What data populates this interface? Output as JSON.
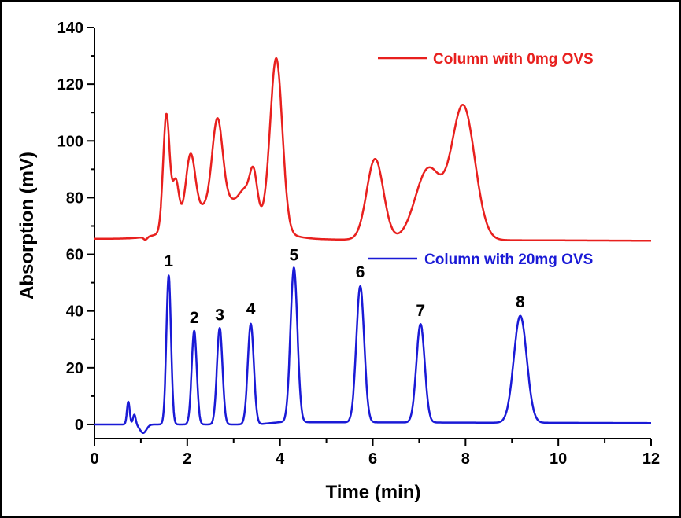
{
  "chart_data": {
    "type": "line",
    "title": "",
    "xlabel": "Time (min)",
    "ylabel": "Absorption (mV)",
    "xlim": [
      0,
      12
    ],
    "ylim": [
      -5,
      140
    ],
    "xticks": [
      0,
      2,
      4,
      6,
      8,
      10,
      12
    ],
    "yticks": [
      0,
      20,
      40,
      60,
      80,
      100,
      120,
      140
    ],
    "grid": false,
    "legend_placement": "top-right (per series)",
    "series": [
      {
        "name": "Column with 0mg OVS",
        "color": "#e8201e",
        "baseline": [
          [
            0,
            65.5
          ],
          [
            12,
            64.8
          ]
        ],
        "peaks": [
          {
            "time": 2.8,
            "height": 14,
            "sigma": 0.7
          },
          {
            "time": 1.1,
            "height": -1,
            "sigma": 0.04
          },
          {
            "time": 1.55,
            "height": 41,
            "sigma": 0.07
          },
          {
            "time": 1.75,
            "height": 16,
            "sigma": 0.07
          },
          {
            "time": 2.07,
            "height": 22,
            "sigma": 0.1
          },
          {
            "time": 2.65,
            "height": 29,
            "sigma": 0.11
          },
          {
            "time": 3.25,
            "height": 6,
            "sigma": 0.12
          },
          {
            "time": 3.43,
            "height": 14,
            "sigma": 0.08
          },
          {
            "time": 3.92,
            "height": 60,
            "sigma": 0.13
          },
          {
            "time": 6.05,
            "height": 28.5,
            "sigma": 0.18
          },
          {
            "time": 7.2,
            "height": 25,
            "sigma": 0.28
          },
          {
            "time": 7.95,
            "height": 47,
            "sigma": 0.25
          }
        ]
      },
      {
        "name": "Column with 20mg OVS",
        "color": "#1a1ad6",
        "baseline": [
          [
            0,
            0
          ],
          [
            3.5,
            0
          ],
          [
            4,
            0.8
          ],
          [
            12,
            0.5
          ]
        ],
        "peaks": [
          {
            "time": 0.73,
            "height": 8,
            "sigma": 0.03
          },
          {
            "time": 0.86,
            "height": 3.5,
            "sigma": 0.03
          },
          {
            "time": 1.05,
            "height": -3,
            "sigma": 0.07
          },
          {
            "time": 1.6,
            "height": 52.5,
            "sigma": 0.05
          },
          {
            "time": 2.15,
            "height": 33,
            "sigma": 0.055
          },
          {
            "time": 2.7,
            "height": 34,
            "sigma": 0.06
          },
          {
            "time": 3.37,
            "height": 35.5,
            "sigma": 0.065
          },
          {
            "time": 4.3,
            "height": 54.5,
            "sigma": 0.075
          },
          {
            "time": 5.73,
            "height": 48,
            "sigma": 0.085
          },
          {
            "time": 7.03,
            "height": 34.7,
            "sigma": 0.09
          },
          {
            "time": 9.18,
            "height": 37.7,
            "sigma": 0.14
          }
        ]
      }
    ],
    "annotations": [
      {
        "text": "1",
        "x": 1.6,
        "y": 53
      },
      {
        "text": "2",
        "x": 2.15,
        "y": 33
      },
      {
        "text": "3",
        "x": 2.7,
        "y": 34
      },
      {
        "text": "4",
        "x": 3.37,
        "y": 36
      },
      {
        "text": "5",
        "x": 4.3,
        "y": 55
      },
      {
        "text": "6",
        "x": 5.73,
        "y": 49
      },
      {
        "text": "7",
        "x": 7.03,
        "y": 35.5
      },
      {
        "text": "8",
        "x": 9.18,
        "y": 38.5
      }
    ]
  }
}
